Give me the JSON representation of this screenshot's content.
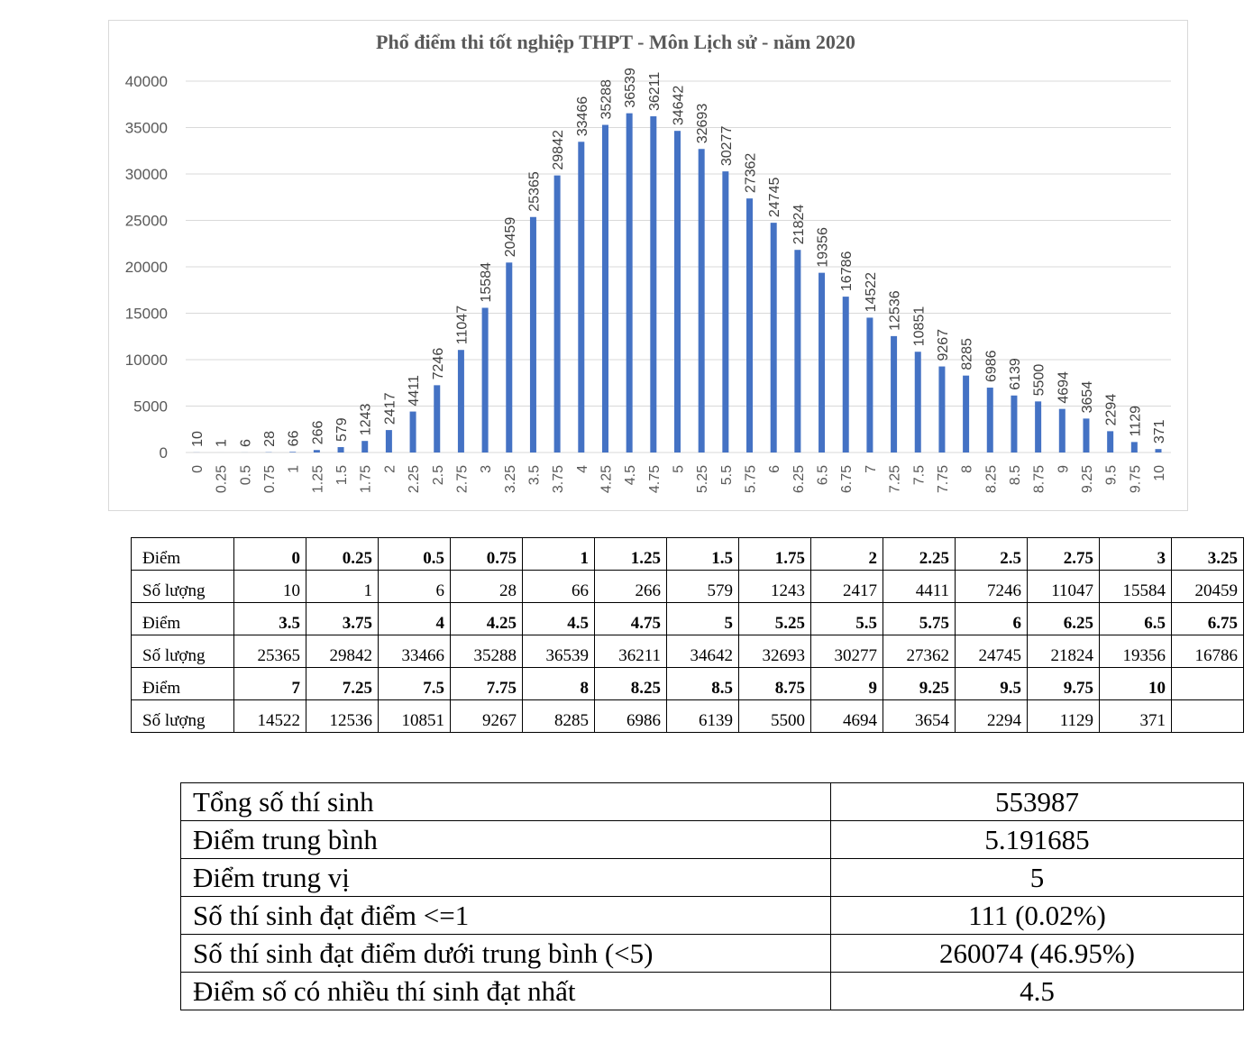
{
  "chart_data": {
    "type": "bar",
    "title": "Phổ điểm thi tốt nghiệp THPT - Môn Lịch sử - năm 2020",
    "categories": [
      "0",
      "0.25",
      "0.5",
      "0.75",
      "1",
      "1.25",
      "1.5",
      "1.75",
      "2",
      "2.25",
      "2.5",
      "2.75",
      "3",
      "3.25",
      "3.5",
      "3.75",
      "4",
      "4.25",
      "4.5",
      "4.75",
      "5",
      "5.25",
      "5.5",
      "5.75",
      "6",
      "6.25",
      "6.5",
      "6.75",
      "7",
      "7.25",
      "7.5",
      "7.75",
      "8",
      "8.25",
      "8.5",
      "8.75",
      "9",
      "9.25",
      "9.5",
      "9.75",
      "10"
    ],
    "values": [
      10,
      1,
      6,
      28,
      66,
      266,
      579,
      1243,
      2417,
      4411,
      7246,
      11047,
      15584,
      20459,
      25365,
      29842,
      33466,
      35288,
      36539,
      36211,
      34642,
      32693,
      30277,
      27362,
      24745,
      21824,
      19356,
      16786,
      14522,
      12536,
      10851,
      9267,
      8285,
      6986,
      6139,
      5500,
      4694,
      3654,
      2294,
      1129,
      371
    ],
    "ylim": [
      0,
      40000
    ],
    "yticks": [
      0,
      5000,
      10000,
      15000,
      20000,
      25000,
      30000,
      35000,
      40000
    ],
    "grid": true,
    "data_labels": true,
    "bar_color": "#4472C4"
  },
  "score_table": {
    "rows": [
      [
        "Điểm",
        "0",
        "0.25",
        "0.5",
        "0.75",
        "1",
        "1.25",
        "1.5",
        "1.75",
        "2",
        "2.25",
        "2.5",
        "2.75",
        "3",
        "3.25"
      ],
      [
        "Số lượng",
        "10",
        "1",
        "6",
        "28",
        "66",
        "266",
        "579",
        "1243",
        "2417",
        "4411",
        "7246",
        "11047",
        "15584",
        "20459"
      ],
      [
        "Điểm",
        "3.5",
        "3.75",
        "4",
        "4.25",
        "4.5",
        "4.75",
        "5",
        "5.25",
        "5.5",
        "5.75",
        "6",
        "6.25",
        "6.5",
        "6.75"
      ],
      [
        "Số lượng",
        "25365",
        "29842",
        "33466",
        "35288",
        "36539",
        "36211",
        "34642",
        "32693",
        "30277",
        "27362",
        "24745",
        "21824",
        "19356",
        "16786"
      ],
      [
        "Điểm",
        "7",
        "7.25",
        "7.5",
        "7.75",
        "8",
        "8.25",
        "8.5",
        "8.75",
        "9",
        "9.25",
        "9.5",
        "9.75",
        "10",
        ""
      ],
      [
        "Số lượng",
        "14522",
        "12536",
        "10851",
        "9267",
        "8285",
        "6986",
        "6139",
        "5500",
        "4694",
        "3654",
        "2294",
        "1129",
        "371",
        ""
      ]
    ]
  },
  "summary_table": {
    "rows": [
      [
        "Tổng số thí sinh",
        "553987"
      ],
      [
        "Điểm trung bình",
        "5.191685"
      ],
      [
        "Điểm trung vị",
        "5"
      ],
      [
        "Số thí sinh đạt điểm <=1",
        "111 (0.02%)"
      ],
      [
        "Số thí sinh đạt điểm dưới trung bình (<5)",
        "260074 (46.95%)"
      ],
      [
        "Điểm số có nhiều thí sinh đạt nhất",
        "4.5"
      ]
    ]
  }
}
